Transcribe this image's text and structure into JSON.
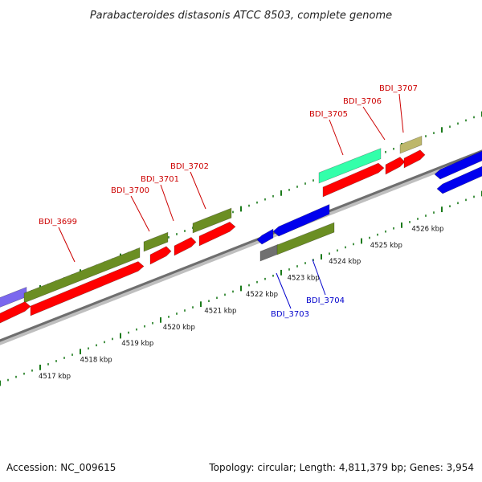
{
  "title": "Parabacteroides distasonis ATCC 8503, complete genome",
  "footer": {
    "accession": "Accession: NC_009615",
    "summary": "Topology: circular; Length: 4,811,379 bp; Genes: 3,954"
  },
  "colors": {
    "forward_label": "#cc0000",
    "reverse_label": "#0000cc",
    "red": "#ff0000",
    "olive": "#6b8e23",
    "blue": "#0000ee",
    "mint": "#33ffaa",
    "khaki": "#bdb76b",
    "slate": "#7b68ee",
    "gray": "#707070",
    "tick": "#1a7a1a"
  },
  "scale_labels": [
    {
      "text": "4517 kbp",
      "kbp": 4517
    },
    {
      "text": "4518 kbp",
      "kbp": 4518
    },
    {
      "text": "4519 kbp",
      "kbp": 4519
    },
    {
      "text": "4520 kbp",
      "kbp": 4520
    },
    {
      "text": "4521 kbp",
      "kbp": 4521
    },
    {
      "text": "4522 kbp",
      "kbp": 4522
    },
    {
      "text": "4523 kbp",
      "kbp": 4523
    },
    {
      "text": "4524 kbp",
      "kbp": 4524
    },
    {
      "text": "4525 kbp",
      "kbp": 4525
    },
    {
      "text": "4526 kbp",
      "kbp": 4526
    }
  ],
  "gene_labels": [
    {
      "text": "BDI_3699",
      "strand": "forward"
    },
    {
      "text": "BDI_3700",
      "strand": "forward"
    },
    {
      "text": "BDI_3701",
      "strand": "forward"
    },
    {
      "text": "BDI_3702",
      "strand": "forward"
    },
    {
      "text": "BDI_3703",
      "strand": "reverse"
    },
    {
      "text": "BDI_3704",
      "strand": "reverse"
    },
    {
      "text": "BDI_3705",
      "strand": "forward"
    },
    {
      "text": "BDI_3706",
      "strand": "forward"
    },
    {
      "text": "BDI_3707",
      "strand": "forward"
    }
  ]
}
